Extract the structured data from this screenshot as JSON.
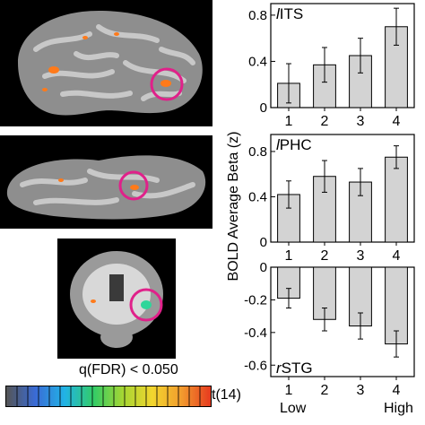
{
  "colors": {
    "bar_fill": "#d3d3d3",
    "circle": "#e0218a",
    "activation": "#ff7a1a",
    "activation_green": "#2fd69a"
  },
  "colorbar": {
    "title": "q(FDR) < 0.050",
    "stat_label": "t(14)",
    "gradient": [
      "#555555",
      "#3a6bd6",
      "#21b3e6",
      "#33cc66",
      "#a6d633",
      "#f2d62e",
      "#f29b2e",
      "#e63a1f"
    ]
  },
  "shared_ylabel": "BOLD Average Beta (z)",
  "chart_data": [
    {
      "type": "bar",
      "region_prefix": "l",
      "region_name": "ITS",
      "categories": [
        "1",
        "2",
        "3",
        "4"
      ],
      "values": [
        0.21,
        0.37,
        0.45,
        0.7
      ],
      "error": [
        0.17,
        0.15,
        0.15,
        0.16
      ],
      "ylim": [
        0,
        0.9
      ],
      "yticks": [
        0,
        0.4,
        0.8
      ]
    },
    {
      "type": "bar",
      "region_prefix": "l",
      "region_name": "PHC",
      "categories": [
        "1",
        "2",
        "3",
        "4"
      ],
      "values": [
        0.42,
        0.58,
        0.53,
        0.75
      ],
      "error": [
        0.12,
        0.14,
        0.12,
        0.1
      ],
      "ylim": [
        0,
        0.95
      ],
      "yticks": [
        0,
        0.4,
        0.8
      ]
    },
    {
      "type": "bar",
      "region_prefix": "r",
      "region_name": "STG",
      "categories": [
        "1",
        "2",
        "3",
        "4"
      ],
      "values": [
        -0.19,
        -0.32,
        -0.36,
        -0.47
      ],
      "error": [
        0.06,
        0.07,
        0.08,
        0.08
      ],
      "ylim": [
        -0.67,
        0
      ],
      "yticks": [
        -0.6,
        -0.4,
        -0.2,
        0
      ],
      "axis_low": "Low",
      "axis_high": "High"
    }
  ]
}
